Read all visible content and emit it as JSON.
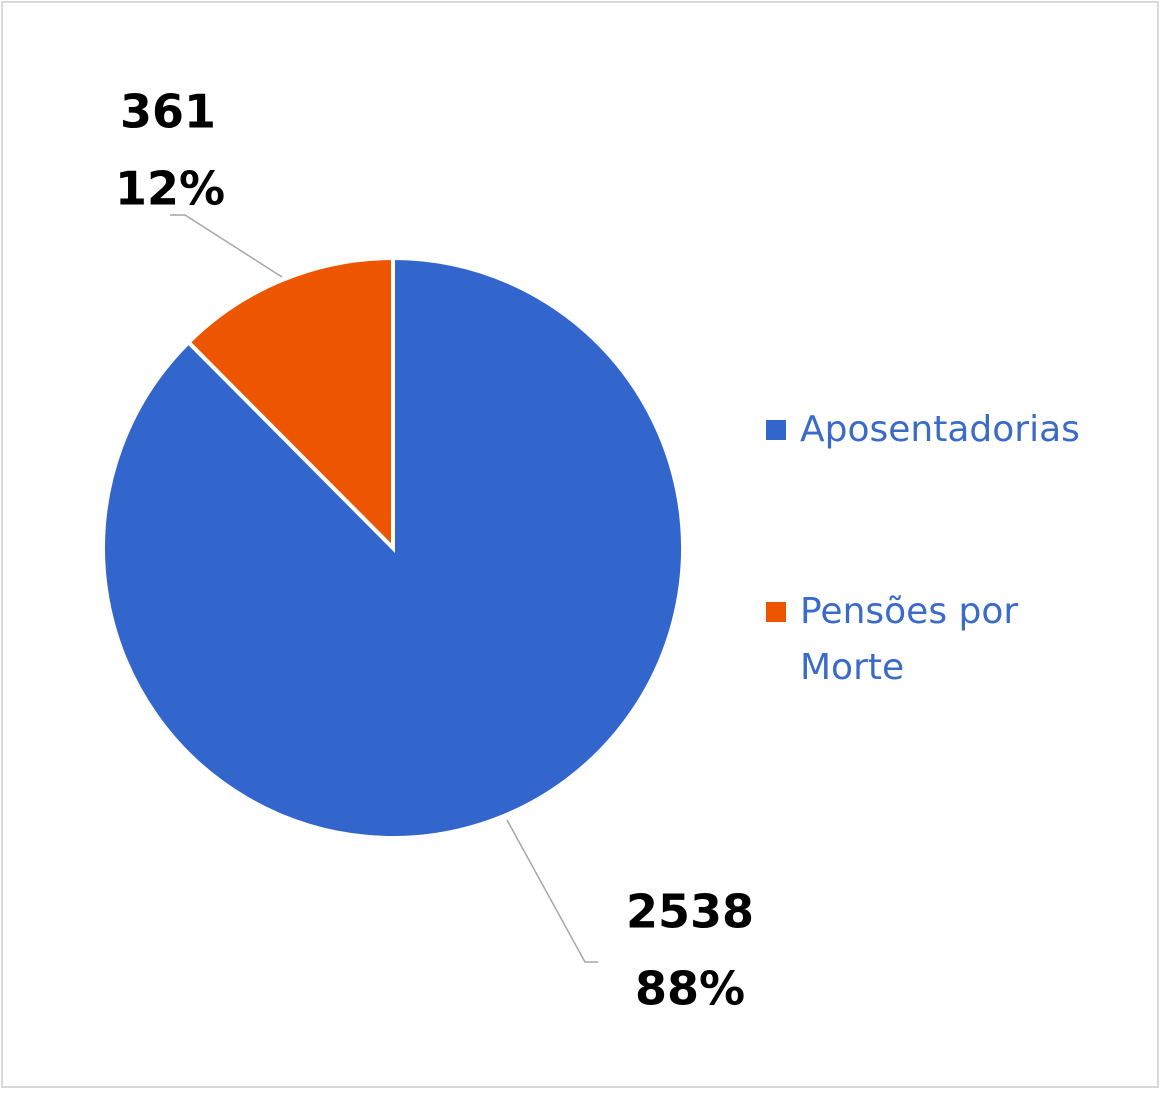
{
  "chart_data": {
    "type": "pie",
    "categories": [
      "Aposentadorias",
      "Pensões por Morte"
    ],
    "values": [
      2538,
      361
    ],
    "percent_labels": [
      "88%",
      "12%"
    ],
    "colors": [
      "#3366cc",
      "#ee5500"
    ],
    "legend": "right"
  }
}
